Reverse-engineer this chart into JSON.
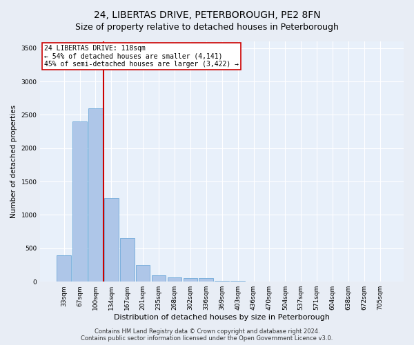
{
  "title": "24, LIBERTAS DRIVE, PETERBOROUGH, PE2 8FN",
  "subtitle": "Size of property relative to detached houses in Peterborough",
  "xlabel": "Distribution of detached houses by size in Peterborough",
  "ylabel": "Number of detached properties",
  "categories": [
    "33sqm",
    "67sqm",
    "100sqm",
    "134sqm",
    "167sqm",
    "201sqm",
    "235sqm",
    "268sqm",
    "302sqm",
    "336sqm",
    "369sqm",
    "403sqm",
    "436sqm",
    "470sqm",
    "504sqm",
    "537sqm",
    "571sqm",
    "604sqm",
    "638sqm",
    "672sqm",
    "705sqm"
  ],
  "values": [
    400,
    2400,
    2600,
    1250,
    650,
    250,
    100,
    65,
    55,
    50,
    15,
    10,
    5,
    3,
    2,
    1,
    1,
    1,
    0,
    0,
    0
  ],
  "bar_color": "#aec6e8",
  "bar_edgecolor": "#5a9fd4",
  "vline_color": "#cc0000",
  "annotation_text": "24 LIBERTAS DRIVE: 118sqm\n← 54% of detached houses are smaller (4,141)\n45% of semi-detached houses are larger (3,422) →",
  "ylim": [
    0,
    3600
  ],
  "yticks": [
    0,
    500,
    1000,
    1500,
    2000,
    2500,
    3000,
    3500
  ],
  "footnote": "Contains HM Land Registry data © Crown copyright and database right 2024.\nContains public sector information licensed under the Open Government Licence v3.0.",
  "bg_color": "#e8edf5",
  "plot_bg_color": "#e8f0fa",
  "title_fontsize": 10,
  "xlabel_fontsize": 8,
  "ylabel_fontsize": 7.5,
  "tick_fontsize": 6.5,
  "annotation_fontsize": 7,
  "footnote_fontsize": 6
}
